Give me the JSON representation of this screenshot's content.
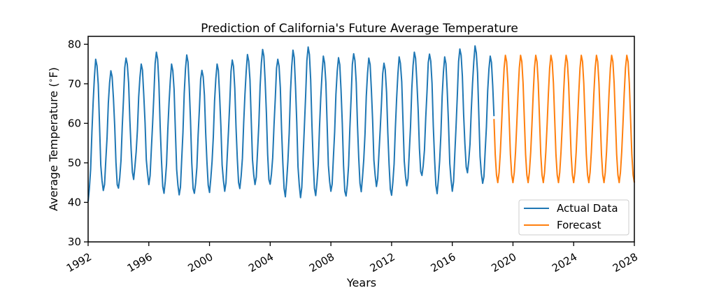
{
  "chart_data": {
    "type": "line",
    "title": "Prediction of California's Future Average Temperature",
    "xlabel": "Years",
    "ylabel": "Average Temperature ($^\\circ$F)",
    "ylabel_prefix": "Average Temperature (",
    "ylabel_degree": "∘",
    "ylabel_unit": "F)",
    "xlim": [
      1992,
      2028
    ],
    "ylim": [
      30,
      82
    ],
    "x_ticks": [
      1992,
      1996,
      2000,
      2004,
      2008,
      2012,
      2016,
      2020,
      2024,
      2028
    ],
    "x_tick_labels": [
      "1992",
      "1996",
      "2000",
      "2004",
      "2008",
      "2012",
      "2016",
      "2020",
      "2024",
      "2028"
    ],
    "y_ticks": [
      30,
      40,
      50,
      60,
      70,
      80
    ],
    "y_tick_labels": [
      "30",
      "40",
      "50",
      "60",
      "70",
      "80"
    ],
    "grid": false,
    "legend_position": "lower-right",
    "series": [
      {
        "name": "Actual Data",
        "color": "#1f77b4",
        "frequency": "monthly",
        "start": 1992.0,
        "summer_peaks": [
          76.2,
          73.3,
          76.5,
          75.0,
          78.0,
          75.0,
          77.3,
          73.4,
          75.0,
          76.0,
          77.4,
          78.7,
          76.2,
          78.5,
          79.3,
          77.0,
          76.6,
          77.6,
          76.5,
          75.2,
          76.8,
          78.0,
          77.5,
          76.8,
          78.8,
          79.6,
          77.0
        ],
        "winter_troughs": [
          40.2,
          43.0,
          43.6,
          45.8,
          44.5,
          42.3,
          41.9,
          42.3,
          42.5,
          42.8,
          43.5,
          44.5,
          44.6,
          41.4,
          41.2,
          41.7,
          42.8,
          41.6,
          42.7,
          44.0,
          41.8,
          44.2,
          46.8,
          42.2,
          42.8,
          47.5,
          44.8
        ]
      },
      {
        "name": "Forecast",
        "color": "#ff7f0e",
        "frequency": "monthly",
        "start": 2018.75,
        "end": 2028.0,
        "summer_peak": 77.2,
        "winter_trough": 45.0
      }
    ]
  }
}
